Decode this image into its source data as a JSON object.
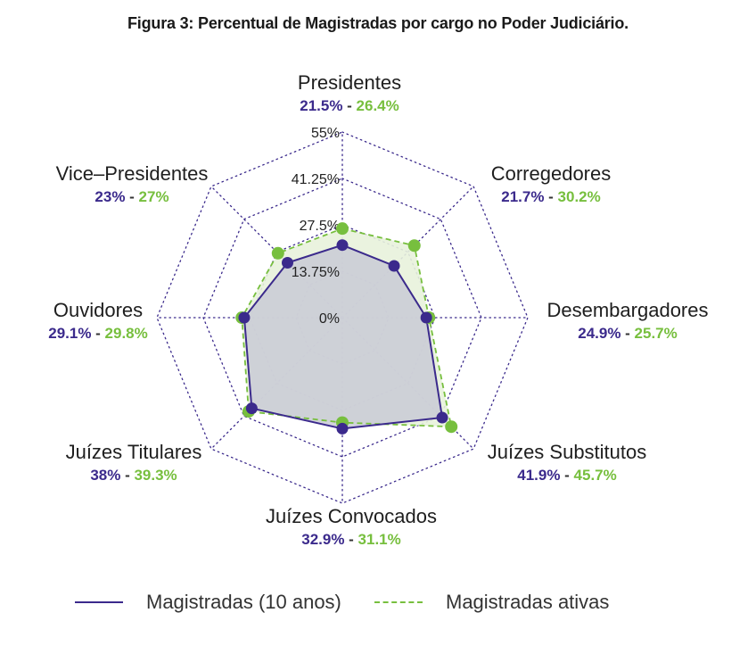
{
  "title": "Figura 3: Percentual de Magistradas por cargo no Poder Judiciário.",
  "chart_data": {
    "type": "radar",
    "title": "Figura 3: Percentual de Magistradas por cargo no Poder Judiciário.",
    "categories": [
      "Presidentes",
      "Corregedores",
      "Desembargadores",
      "Juízes Substitutos",
      "Juízes Convocados",
      "Juízes Titulares",
      "Ouvidores",
      "Vice–Presidentes"
    ],
    "range": [
      0,
      55
    ],
    "ticks": [
      "0%",
      "13.75%",
      "27.5%",
      "41.25%",
      "55%"
    ],
    "tick_values": [
      0,
      13.75,
      27.5,
      41.25,
      55
    ],
    "series": [
      {
        "name": "Magistradas (10 anos)",
        "color": "#3b2a8c",
        "style": "solid",
        "values": [
          21.5,
          21.7,
          24.9,
          41.9,
          32.9,
          38,
          29.1,
          23
        ],
        "labels": [
          "21.5%",
          "21.7%",
          "24.9%",
          "41.9%",
          "32.9%",
          "38%",
          "29.1%",
          "23%"
        ]
      },
      {
        "name": "Magistradas ativas",
        "color": "#77bf3e",
        "style": "dashed",
        "values": [
          26.4,
          30.2,
          25.7,
          45.7,
          31.1,
          39.3,
          29.8,
          27
        ],
        "labels": [
          "26.4%",
          "30.2%",
          "25.7%",
          "45.7%",
          "31.1%",
          "39.3%",
          "29.8%",
          "27%"
        ]
      }
    ],
    "separator": " - ",
    "grid": true,
    "legend": "bottom"
  },
  "colors": {
    "grid": "#3b2a8c",
    "fill_10_anos": "#c9cad6",
    "fill_ativas": "#e8f2dc"
  }
}
